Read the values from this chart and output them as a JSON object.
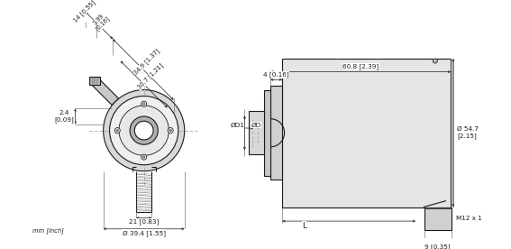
{
  "bg_color": "#ffffff",
  "line_color": "#1a1a1a",
  "gray1": "#c8c8c8",
  "gray2": "#e0e0e0",
  "gray3": "#a0a0a0",
  "gray4": "#d4d4d4",
  "dash_color": "#888888",
  "footer_text": "mm [inch]",
  "dims_left": {
    "label_14": "14 [0.55]",
    "label_399": "3.99\n[0.16]",
    "label_349": "34.9 [1.37]",
    "label_307": "30.7 [1.21]",
    "label_24": "2.4\n[0.09]",
    "label_21": "21 [0.83]",
    "label_394": "Ø 39.4 [1.55]"
  },
  "dims_right": {
    "label_608": "60.8 [2.39]",
    "label_4": "4 [0.16]",
    "label_d1": "ØD1",
    "label_d": "ØD",
    "label_l": "L",
    "label_m12": "M12 x 1",
    "label_9": "9 [0.35]",
    "label_547": "Ø 54.7\n[2.15]"
  }
}
